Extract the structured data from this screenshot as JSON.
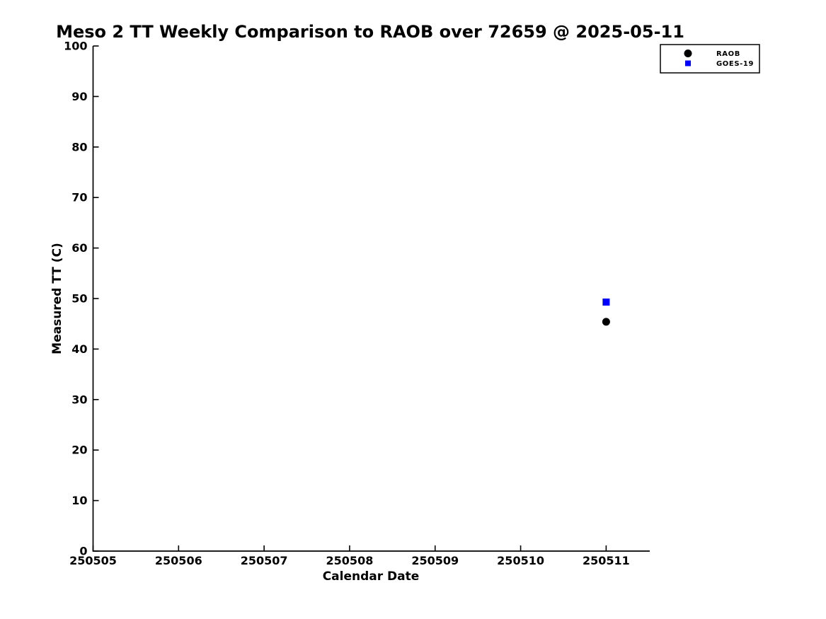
{
  "figure": {
    "background_color": "#ffffff",
    "text_color": "#000000"
  },
  "chart_data": {
    "type": "scatter",
    "title": "Meso 2 TT Weekly Comparison to RAOB over 72659 @ 2025-05-11",
    "xlabel": "Calendar Date",
    "ylabel": "Measured TT (C)",
    "xlim": [
      250505,
      250511.51
    ],
    "ylim": [
      0,
      100
    ],
    "grid": false,
    "x_ticks": [
      {
        "v": 250505,
        "label": "250505"
      },
      {
        "v": 250506,
        "label": "250506"
      },
      {
        "v": 250507,
        "label": "250507"
      },
      {
        "v": 250508,
        "label": "250508"
      },
      {
        "v": 250509,
        "label": "250509"
      },
      {
        "v": 250510,
        "label": "250510"
      },
      {
        "v": 250511,
        "label": "250511"
      }
    ],
    "y_ticks": [
      {
        "v": 0,
        "label": "0"
      },
      {
        "v": 10,
        "label": "10"
      },
      {
        "v": 20,
        "label": "20"
      },
      {
        "v": 30,
        "label": "30"
      },
      {
        "v": 40,
        "label": "40"
      },
      {
        "v": 50,
        "label": "50"
      },
      {
        "v": 60,
        "label": "60"
      },
      {
        "v": 70,
        "label": "70"
      },
      {
        "v": 80,
        "label": "80"
      },
      {
        "v": 90,
        "label": "90"
      },
      {
        "v": 100,
        "label": "100"
      }
    ],
    "legend": {
      "position": "outside-upper-right",
      "border": true,
      "background": "#ffffff"
    },
    "series": [
      {
        "name": "RAOB",
        "marker": "circle",
        "color": "#000000",
        "points": [
          {
            "x": 250511,
            "y": 45.4
          }
        ]
      },
      {
        "name": "GOES-19",
        "marker": "square",
        "color": "#0000ff",
        "points": [
          {
            "x": 250511,
            "y": 49.3
          }
        ]
      }
    ]
  }
}
